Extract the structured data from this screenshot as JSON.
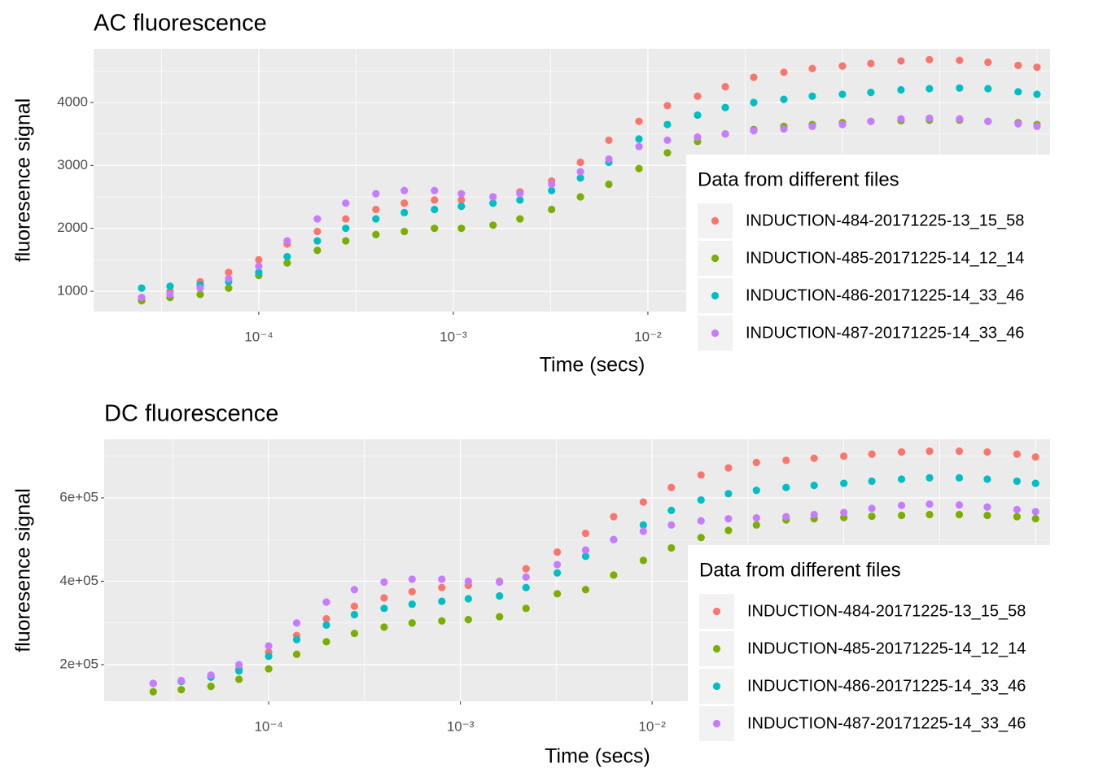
{
  "chart_data": [
    {
      "type": "scatter",
      "title": "AC fluorescence",
      "x_label": "Time (secs)",
      "y_label": "fluoresence signal",
      "log_x": true,
      "grid": true,
      "legend_title": "Data from different files",
      "legend_position": "right",
      "x": [
        2.5e-05,
        3.5e-05,
        5e-05,
        7e-05,
        0.0001,
        0.00014,
        0.0002,
        0.00028,
        0.0004,
        0.00056,
        0.0008,
        0.0011,
        0.0016,
        0.0022,
        0.0032,
        0.0045,
        0.0063,
        0.009,
        0.0126,
        0.018,
        0.025,
        0.035,
        0.05,
        0.07,
        0.1,
        0.14,
        0.2,
        0.28,
        0.4,
        0.56,
        0.8,
        1.0
      ],
      "series": [
        {
          "name": "INDUCTION-484-20171225-13_15_58",
          "color": "#F8766D",
          "values": [
            900,
            1000,
            1150,
            1300,
            1500,
            1750,
            1950,
            2150,
            2300,
            2400,
            2450,
            2450,
            2500,
            2580,
            2750,
            3050,
            3400,
            3700,
            3950,
            4100,
            4250,
            4400,
            4480,
            4540,
            4580,
            4620,
            4660,
            4680,
            4670,
            4640,
            4590,
            4560
          ]
        },
        {
          "name": "INDUCTION-485-20171225-14_12_14",
          "color": "#7CAE00",
          "values": [
            850,
            900,
            950,
            1050,
            1250,
            1450,
            1650,
            1800,
            1900,
            1950,
            2000,
            2000,
            2050,
            2150,
            2300,
            2500,
            2700,
            2950,
            3200,
            3380,
            3500,
            3570,
            3620,
            3650,
            3680,
            3700,
            3710,
            3720,
            3720,
            3700,
            3680,
            3650
          ]
        },
        {
          "name": "INDUCTION-486-20171225-14_33_46",
          "color": "#00BFC4",
          "values": [
            1050,
            1080,
            1100,
            1150,
            1300,
            1550,
            1800,
            2000,
            2150,
            2250,
            2300,
            2350,
            2400,
            2450,
            2600,
            2800,
            3050,
            3420,
            3650,
            3800,
            3920,
            4000,
            4050,
            4100,
            4130,
            4160,
            4200,
            4220,
            4230,
            4220,
            4170,
            4130
          ]
        },
        {
          "name": "INDUCTION-487-20171225-14_33_46",
          "color": "#C77CFF",
          "values": [
            900,
            950,
            1050,
            1200,
            1400,
            1800,
            2150,
            2400,
            2550,
            2600,
            2600,
            2550,
            2500,
            2550,
            2700,
            2900,
            3100,
            3300,
            3400,
            3450,
            3500,
            3550,
            3580,
            3620,
            3650,
            3700,
            3740,
            3750,
            3740,
            3700,
            3660,
            3620
          ]
        }
      ],
      "xlim": [
        1.416e-05,
        1.167
      ],
      "ylim": [
        677,
        4853
      ],
      "xticks": [
        {
          "value": 0.0001,
          "label": "10⁻⁴"
        },
        {
          "value": 0.001,
          "label": "10⁻³"
        },
        {
          "value": 0.01,
          "label": "10⁻²"
        }
      ],
      "x_gridlines": [
        3.16e-05,
        0.000316,
        0.00316,
        0.0316,
        0.1,
        0.316,
        1.0
      ],
      "yticks": [
        1000,
        2000,
        3000,
        4000
      ],
      "y_minor_ticks": [
        1500,
        2500,
        3500,
        4500
      ]
    },
    {
      "type": "scatter",
      "title": "DC fluorescence",
      "x_label": "Time (secs)",
      "y_label": "fluoresence signal",
      "log_x": true,
      "grid": true,
      "legend_title": "Data from different files",
      "legend_position": "right",
      "x": [
        2.5e-05,
        3.5e-05,
        5e-05,
        7e-05,
        0.0001,
        0.00014,
        0.0002,
        0.00028,
        0.0004,
        0.00056,
        0.0008,
        0.0011,
        0.0016,
        0.0022,
        0.0032,
        0.0045,
        0.0063,
        0.009,
        0.0126,
        0.018,
        0.025,
        0.035,
        0.05,
        0.07,
        0.1,
        0.14,
        0.2,
        0.28,
        0.4,
        0.56,
        0.8,
        1.0
      ],
      "series": [
        {
          "name": "INDUCTION-484-20171225-13_15_58",
          "color": "#F8766D",
          "values": [
            155000,
            160000,
            172000,
            190000,
            230000,
            270000,
            310000,
            340000,
            360000,
            375000,
            385000,
            390000,
            400000,
            430000,
            470000,
            515000,
            555000,
            590000,
            625000,
            655000,
            672000,
            685000,
            690000,
            695000,
            700000,
            705000,
            710000,
            712000,
            712000,
            710000,
            705000,
            698000
          ]
        },
        {
          "name": "INDUCTION-485-20171225-14_12_14",
          "color": "#7CAE00",
          "values": [
            135000,
            140000,
            148000,
            165000,
            190000,
            225000,
            255000,
            275000,
            290000,
            300000,
            305000,
            308000,
            315000,
            335000,
            370000,
            380000,
            415000,
            450000,
            480000,
            505000,
            522000,
            535000,
            547000,
            550000,
            553000,
            556000,
            558000,
            560000,
            560000,
            558000,
            555000,
            550000
          ]
        },
        {
          "name": "INDUCTION-486-20171225-14_33_46",
          "color": "#00BFC4",
          "values": [
            155000,
            160000,
            170000,
            185000,
            220000,
            260000,
            295000,
            320000,
            335000,
            345000,
            352000,
            358000,
            365000,
            385000,
            420000,
            460000,
            500000,
            535000,
            570000,
            595000,
            610000,
            618000,
            625000,
            630000,
            635000,
            640000,
            645000,
            648000,
            648000,
            645000,
            640000,
            635000
          ]
        },
        {
          "name": "INDUCTION-487-20171225-14_33_46",
          "color": "#C77CFF",
          "values": [
            155000,
            162000,
            175000,
            200000,
            245000,
            300000,
            350000,
            380000,
            398000,
            405000,
            405000,
            400000,
            398000,
            410000,
            440000,
            475000,
            500000,
            520000,
            535000,
            545000,
            550000,
            552000,
            555000,
            560000,
            565000,
            575000,
            582000,
            585000,
            583000,
            578000,
            572000,
            567000
          ]
        }
      ],
      "xlim": [
        1.387e-05,
        1.19
      ],
      "ylim": [
        112200,
        740500
      ],
      "xticks": [
        {
          "value": 0.0001,
          "label": "10⁻⁴"
        },
        {
          "value": 0.001,
          "label": "10⁻³"
        },
        {
          "value": 0.01,
          "label": "10⁻²"
        }
      ],
      "x_gridlines": [
        3.16e-05,
        0.000316,
        0.00316,
        0.0316,
        0.1,
        0.316,
        1.0
      ],
      "yticks": [
        {
          "value": 200000,
          "label": "2e+05"
        },
        {
          "value": 400000,
          "label": "4e+05"
        },
        {
          "value": 600000,
          "label": "6e+05"
        }
      ],
      "y_minor_ticks": [
        300000,
        500000,
        700000
      ]
    }
  ]
}
